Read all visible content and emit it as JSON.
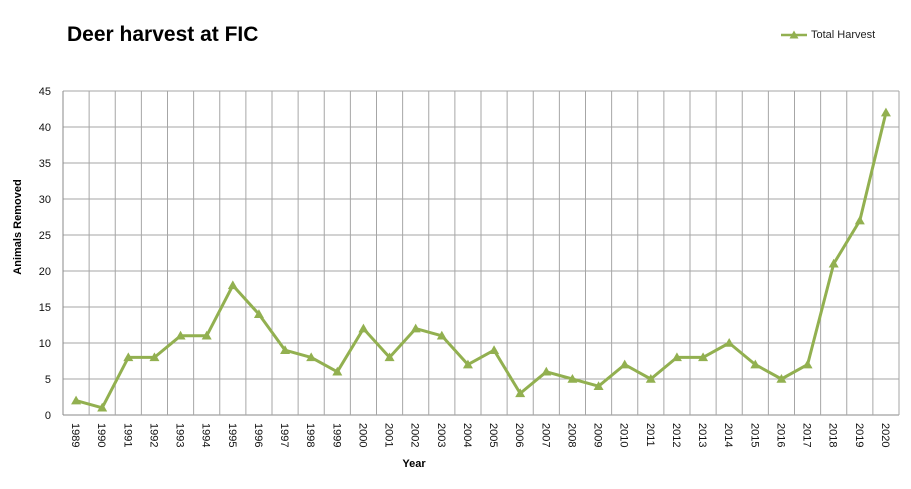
{
  "chart_data": {
    "type": "line",
    "title": "Deer harvest at FIC",
    "xlabel": "Year",
    "ylabel": "Animals Removed",
    "ylim": [
      0,
      45
    ],
    "ytick_step": 5,
    "grid": true,
    "legend_position": "top-right",
    "categories": [
      "1989",
      "1990",
      "1991",
      "1992",
      "1993",
      "1994",
      "1995",
      "1996",
      "1997",
      "1998",
      "1999",
      "2000",
      "2001",
      "2002",
      "2003",
      "2004",
      "2005",
      "2006",
      "2007",
      "2008",
      "2009",
      "2010",
      "2011",
      "2012",
      "2013",
      "2014",
      "2015",
      "2016",
      "2017",
      "2018",
      "2019",
      "2020"
    ],
    "series": [
      {
        "name": "Total Harvest",
        "color": "#92b050",
        "marker": "triangle",
        "values": [
          2,
          1,
          8,
          8,
          11,
          11,
          18,
          14,
          9,
          8,
          6,
          12,
          8,
          12,
          11,
          7,
          9,
          3,
          6,
          5,
          4,
          7,
          5,
          8,
          8,
          10,
          7,
          5,
          7,
          21,
          27,
          42
        ]
      }
    ]
  }
}
